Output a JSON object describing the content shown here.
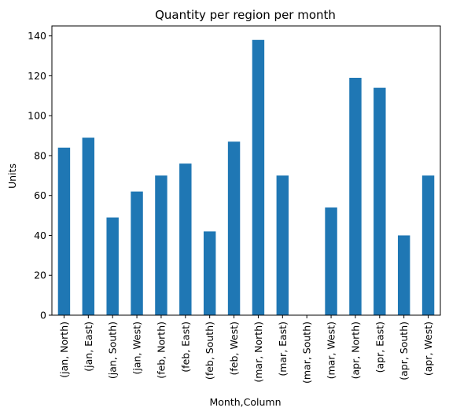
{
  "chart_data": {
    "type": "bar",
    "title": "Quantity per region per month",
    "xlabel": "Month,Column",
    "ylabel": "Units",
    "categories": [
      "(jan, North)",
      "(jan, East)",
      "(jan, South)",
      "(jan, West)",
      "(feb, North)",
      "(feb, East)",
      "(feb, South)",
      "(feb, West)",
      "(mar, North)",
      "(mar, East)",
      "(mar, South)",
      "(mar, West)",
      "(apr, North)",
      "(apr, East)",
      "(apr, South)",
      "(apr, West)"
    ],
    "values": [
      84,
      89,
      49,
      62,
      70,
      76,
      42,
      87,
      138,
      70,
      0,
      54,
      119,
      114,
      40,
      70
    ],
    "ylim": [
      0,
      145
    ],
    "yticks": [
      0,
      20,
      40,
      60,
      80,
      100,
      120,
      140
    ],
    "grid": false,
    "bar_color": "#1f77b4"
  }
}
